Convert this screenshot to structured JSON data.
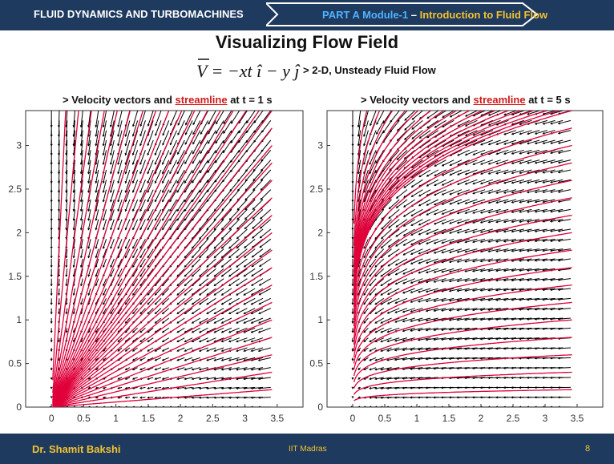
{
  "header": {
    "course": "FLUID DYNAMICS AND TURBOMACHINES",
    "part": "PART A Module-1",
    "dash": " – ",
    "module_title": "Introduction to Fluid Flow"
  },
  "slide": {
    "title": "Visualizing Flow Field",
    "equation": "V = −xt î − y ĵ",
    "equation_note": "> 2-D, Unsteady Fluid Flow"
  },
  "footer": {
    "author": "Dr. Shamit Bakshi",
    "institute": "IIT Madras",
    "page": "8"
  },
  "chart_data": [
    {
      "type": "quiver",
      "title_prefix": "> Velocity vectors and ",
      "title_highlight": "streamline",
      "title_suffix": " at t = 1 s",
      "t": 1,
      "xlim": [
        -0.4,
        3.9
      ],
      "ylim": [
        0,
        3.4
      ],
      "xticks": [
        "0",
        "0.5",
        "1",
        "1.5",
        "2",
        "2.5",
        "3",
        "3.5"
      ],
      "yticks": [
        "0",
        "0.5",
        "1",
        "1.5",
        "2",
        "2.5",
        "3"
      ],
      "vector_color": "#000000",
      "streamline_color": "#e0003a"
    },
    {
      "type": "quiver",
      "title_prefix": "> Velocity vectors and ",
      "title_highlight": "streamline",
      "title_suffix": " at t = 5 s",
      "t": 5,
      "xlim": [
        -0.4,
        3.9
      ],
      "ylim": [
        0,
        3.4
      ],
      "xticks": [
        "0",
        "0.5",
        "1",
        "1.5",
        "2",
        "2.5",
        "3",
        "3.5"
      ],
      "yticks": [
        "0",
        "0.5",
        "1",
        "1.5",
        "2",
        "2.5",
        "3"
      ],
      "vector_color": "#000000",
      "streamline_color": "#e0003a"
    }
  ]
}
